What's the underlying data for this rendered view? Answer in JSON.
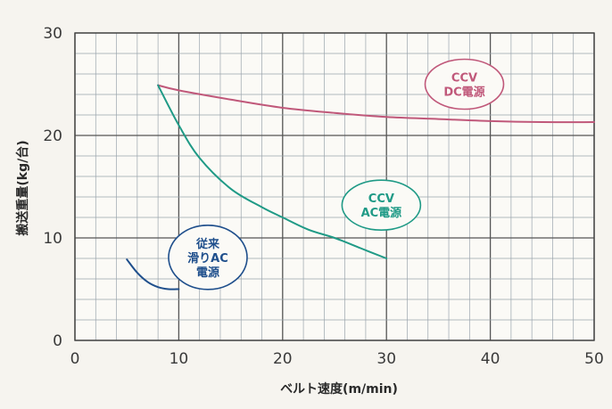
{
  "chart_data": {
    "type": "line",
    "xlabel": "ベルト速度(m/min)",
    "ylabel": "搬送重量(kg/台)",
    "xlim": [
      0,
      50
    ],
    "ylim": [
      0,
      30
    ],
    "x_ticks": [
      0,
      10,
      20,
      30,
      40,
      50
    ],
    "y_ticks": [
      0,
      10,
      20,
      30
    ],
    "grid": true,
    "minor_grid_step": 2,
    "series": [
      {
        "color": "#c0587a",
        "points": [
          [
            8,
            24.9
          ],
          [
            10,
            24.4
          ],
          [
            15,
            23.5
          ],
          [
            20,
            22.7
          ],
          [
            25,
            22.2
          ],
          [
            30,
            21.8
          ],
          [
            35,
            21.6
          ],
          [
            40,
            21.4
          ],
          [
            45,
            21.3
          ],
          [
            50,
            21.3
          ]
        ]
      },
      {
        "color": "#1f9a86",
        "points": [
          [
            8,
            24.9
          ],
          [
            10,
            21.0
          ],
          [
            12,
            17.8
          ],
          [
            15,
            14.8
          ],
          [
            18,
            13.0
          ],
          [
            20,
            12.0
          ],
          [
            22.5,
            10.8
          ],
          [
            25,
            10.0
          ],
          [
            27.5,
            9.0
          ],
          [
            30,
            8.0
          ]
        ]
      },
      {
        "color": "#1f4f8c",
        "points": [
          [
            5,
            7.9
          ],
          [
            6,
            6.6
          ],
          [
            7,
            5.7
          ],
          [
            8,
            5.2
          ],
          [
            9,
            5.0
          ],
          [
            10,
            5.0
          ]
        ]
      }
    ],
    "annotations": [
      {
        "lines": [
          "CCV",
          "DC電源"
        ],
        "color": "#c0587a",
        "x": 37.5,
        "y": 25.0
      },
      {
        "lines": [
          "CCV",
          "AC電源"
        ],
        "color": "#1f9a86",
        "x": 29.5,
        "y": 13.2
      },
      {
        "lines": [
          "従来",
          "滑りAC",
          "電源"
        ],
        "color": "#1f4f8c",
        "x": 12.8,
        "y": 8.1
      }
    ]
  }
}
